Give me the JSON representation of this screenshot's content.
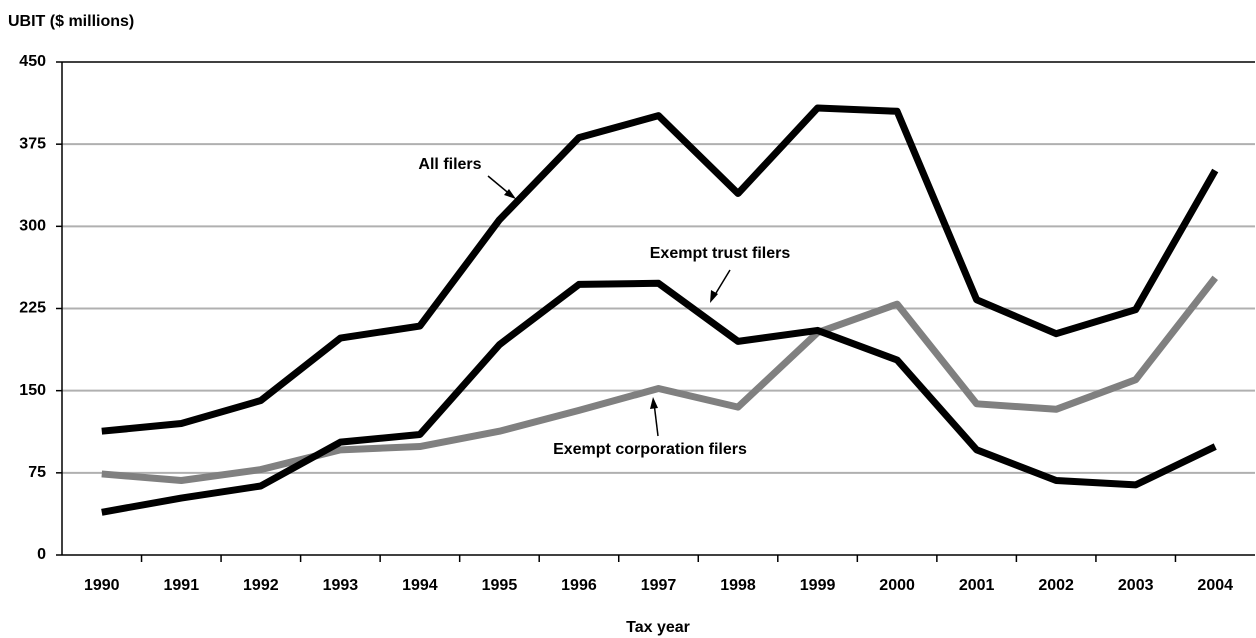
{
  "chart_data": {
    "type": "line",
    "y_label": "UBIT ($ millions)",
    "x_label": "Tax year",
    "categories": [
      "1990",
      "1991",
      "1992",
      "1993",
      "1994",
      "1995",
      "1996",
      "1997",
      "1998",
      "1999",
      "2000",
      "2001",
      "2002",
      "2003",
      "2004"
    ],
    "series": [
      {
        "name": "All filers",
        "color": "#000000",
        "values": [
          113,
          120,
          141,
          198,
          209,
          306,
          381,
          401,
          330,
          408,
          405,
          233,
          202,
          224,
          351
        ]
      },
      {
        "name": "Exempt trust filers",
        "color": "#000000",
        "values": [
          39,
          52,
          63,
          103,
          110,
          192,
          247,
          248,
          195,
          205,
          178,
          96,
          68,
          64,
          99
        ]
      },
      {
        "name": "Exempt corporation filers",
        "color": "#808080",
        "values": [
          74,
          68,
          78,
          96,
          99,
          113,
          132,
          152,
          135,
          203,
          229,
          138,
          133,
          160,
          253
        ]
      }
    ],
    "ylim": [
      0,
      450
    ],
    "yticks": [
      0,
      75,
      150,
      225,
      300,
      375,
      450
    ],
    "grid": true
  }
}
